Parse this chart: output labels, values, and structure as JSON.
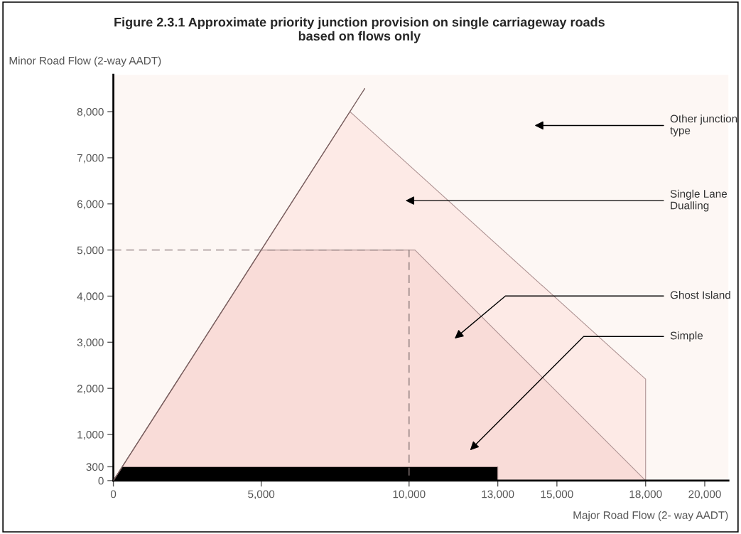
{
  "chart_data": {
    "type": "area",
    "title": "Figure 2.3.1 Approximate priority junction provision on single carriageway roads\nbased on flows only",
    "xlabel": "Major Road Flow (2- way AADT)",
    "ylabel": "Minor Road Flow (2-way AADT)",
    "series": [
      {
        "color": "#fdeae6",
        "x": [
          0,
          8000,
          18000,
          18000
        ],
        "values": [
          0,
          8000,
          2200,
          0
        ]
      },
      {
        "color": "#f9dcd8",
        "x": [
          0,
          5000,
          10200,
          18000
        ],
        "values": [
          0,
          5000,
          5000,
          0
        ]
      },
      {
        "color": "#000000",
        "x": [
          0,
          300,
          13000,
          13000
        ],
        "values": [
          0,
          300,
          300,
          0
        ]
      },
      {
        "type": "line",
        "color": "#7a6060",
        "x": [
          0,
          8500
        ],
        "values": [
          0,
          8500
        ]
      },
      {
        "type": "line",
        "color": "#8a7a7a",
        "line_style": "dashed",
        "x": [
          0,
          10000,
          10000
        ],
        "values": [
          5000,
          5000,
          0
        ]
      }
    ],
    "xlim": [
      0,
      20800
    ],
    "ylim": [
      0,
      8800
    ],
    "xticks": [
      {
        "value": 0,
        "label": "0"
      },
      {
        "value": 5000,
        "label": "5,000"
      },
      {
        "value": 10000,
        "label": "10,000"
      },
      {
        "value": 13000,
        "label": "13,000"
      },
      {
        "value": 15000,
        "label": "15,000"
      },
      {
        "value": 18000,
        "label": "18,000"
      },
      {
        "value": 20000,
        "label": "20,000"
      }
    ],
    "yticks": [
      {
        "value": 0,
        "label": "0"
      },
      {
        "value": 300,
        "label": "300"
      },
      {
        "value": 1000,
        "label": "1,000"
      },
      {
        "value": 2000,
        "label": "2,000"
      },
      {
        "value": 3000,
        "label": "3,000"
      },
      {
        "value": 4000,
        "label": "4,000"
      },
      {
        "value": 5000,
        "label": "5,000"
      },
      {
        "value": 6000,
        "label": "6,000"
      },
      {
        "value": 7000,
        "label": "7,000"
      },
      {
        "value": 8000,
        "label": "8,000"
      }
    ],
    "annotations": [
      "Other junction\ntype",
      "Single Lane\nDualling",
      "Ghost Island",
      "Simple"
    ],
    "grid": false,
    "legend": false
  }
}
